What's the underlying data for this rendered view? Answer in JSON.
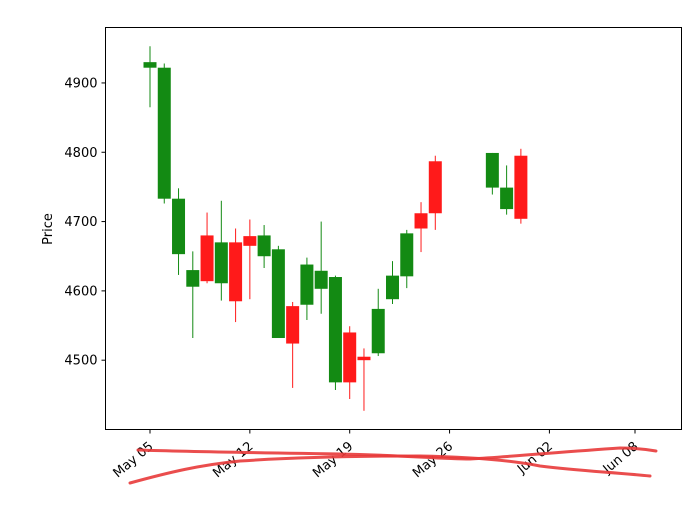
{
  "chart_data": {
    "type": "candlestick",
    "ylabel": "Price",
    "ylim": [
      4400,
      4980
    ],
    "grid": false,
    "colors": {
      "up": "#138a13",
      "down": "#ff1a1a",
      "scribble": "#e83a3a"
    },
    "y_ticks": [
      4500,
      4600,
      4700,
      4800,
      4900
    ],
    "y_tick_labels": [
      "4500",
      "4600",
      "4700",
      "4800",
      "4900"
    ],
    "x_ticks": [
      {
        "date": "2024-05-05",
        "label": "May 05"
      },
      {
        "date": "2024-05-12",
        "label": "May 12"
      },
      {
        "date": "2024-05-19",
        "label": "May 19"
      },
      {
        "date": "2024-05-26",
        "label": "May 26"
      },
      {
        "date": "2024-06-02",
        "label": "Jun 02"
      },
      {
        "date": "2024-06-08",
        "label": "Jun 08"
      }
    ],
    "candles": [
      {
        "date": "2024-05-05",
        "open": 4922,
        "high": 4953,
        "low": 4865,
        "close": 4930
      },
      {
        "date": "2024-05-06",
        "open": 4733,
        "high": 4928,
        "low": 4726,
        "close": 4922
      },
      {
        "date": "2024-05-07",
        "open": 4653,
        "high": 4748,
        "low": 4623,
        "close": 4733
      },
      {
        "date": "2024-05-08",
        "open": 4606,
        "high": 4657,
        "low": 4532,
        "close": 4630
      },
      {
        "date": "2024-05-09",
        "open": 4680,
        "high": 4713,
        "low": 4611,
        "close": 4614
      },
      {
        "date": "2024-05-10",
        "open": 4611,
        "high": 4730,
        "low": 4586,
        "close": 4670
      },
      {
        "date": "2024-05-11",
        "open": 4670,
        "high": 4690,
        "low": 4555,
        "close": 4585
      },
      {
        "date": "2024-05-12",
        "open": 4679,
        "high": 4703,
        "low": 4588,
        "close": 4665
      },
      {
        "date": "2024-05-13",
        "open": 4650,
        "high": 4695,
        "low": 4633,
        "close": 4680
      },
      {
        "date": "2024-05-14",
        "open": 4532,
        "high": 4665,
        "low": 4532,
        "close": 4660
      },
      {
        "date": "2024-05-15",
        "open": 4578,
        "high": 4584,
        "low": 4460,
        "close": 4524
      },
      {
        "date": "2024-05-16",
        "open": 4580,
        "high": 4648,
        "low": 4558,
        "close": 4638
      },
      {
        "date": "2024-05-17",
        "open": 4603,
        "high": 4700,
        "low": 4567,
        "close": 4629
      },
      {
        "date": "2024-05-18",
        "open": 4468,
        "high": 4622,
        "low": 4457,
        "close": 4620
      },
      {
        "date": "2024-05-19",
        "open": 4540,
        "high": 4549,
        "low": 4444,
        "close": 4468
      },
      {
        "date": "2024-05-20",
        "open": 4505,
        "high": 4517,
        "low": 4427,
        "close": 4500
      },
      {
        "date": "2024-05-21",
        "open": 4510,
        "high": 4603,
        "low": 4506,
        "close": 4574
      },
      {
        "date": "2024-05-22",
        "open": 4588,
        "high": 4643,
        "low": 4581,
        "close": 4622
      },
      {
        "date": "2024-05-23",
        "open": 4621,
        "high": 4688,
        "low": 4604,
        "close": 4683
      },
      {
        "date": "2024-05-24",
        "open": 4712,
        "high": 4728,
        "low": 4656,
        "close": 4690
      },
      {
        "date": "2024-05-25",
        "open": 4787,
        "high": 4795,
        "low": 4688,
        "close": 4712
      },
      {
        "date": "2024-05-29",
        "open": 4749,
        "high": 4799,
        "low": 4739,
        "close": 4799
      },
      {
        "date": "2024-05-30",
        "open": 4718,
        "high": 4781,
        "low": 4710,
        "close": 4749
      },
      {
        "date": "2024-05-31",
        "open": 4795,
        "high": 4805,
        "low": 4697,
        "close": 4704
      }
    ]
  }
}
